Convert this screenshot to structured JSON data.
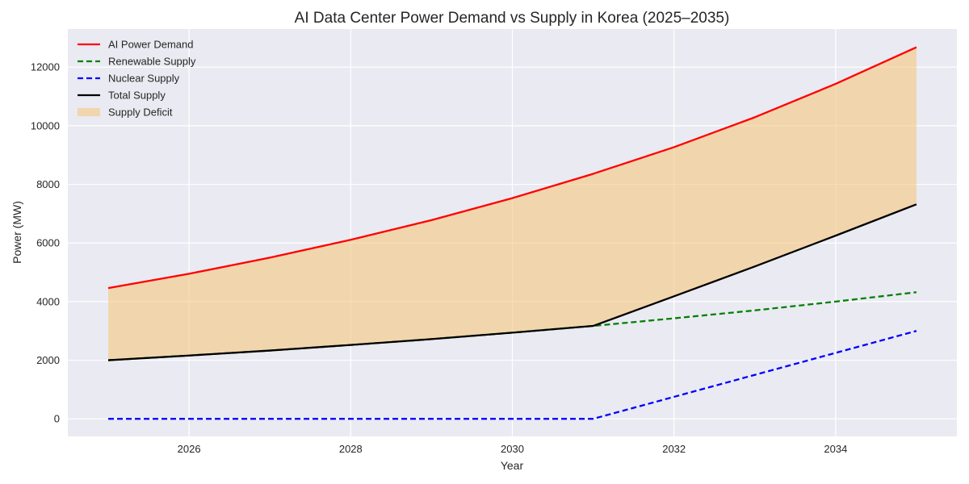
{
  "chart_data": {
    "type": "line",
    "title": "AI Data Center Power Demand vs Supply in Korea (2025–2035)",
    "xlabel": "Year",
    "ylabel": "Power (MW)",
    "xlim": [
      2024.5,
      2035.5
    ],
    "ylim": [
      -600,
      13300
    ],
    "x_ticks": [
      2026,
      2028,
      2030,
      2032,
      2034
    ],
    "y_ticks": [
      0,
      2000,
      4000,
      6000,
      8000,
      10000,
      12000
    ],
    "grid": true,
    "legend_position": "top-left",
    "x": [
      2025,
      2026,
      2027,
      2028,
      2029,
      2030,
      2031,
      2032,
      2033,
      2034,
      2035
    ],
    "series": [
      {
        "name": "AI Power Demand",
        "color": "#ff0000",
        "dash": "solid",
        "values": [
          4460,
          4950,
          5500,
          6110,
          6780,
          7530,
          8360,
          9270,
          10290,
          11430,
          12680
        ]
      },
      {
        "name": "Renewable Supply",
        "color": "#008000",
        "dash": "dashed",
        "values": [
          2000,
          2160,
          2330,
          2520,
          2720,
          2940,
          3170,
          3430,
          3700,
          4000,
          4320
        ]
      },
      {
        "name": "Nuclear Supply",
        "color": "#0000ff",
        "dash": "dashed",
        "values": [
          0,
          0,
          0,
          0,
          0,
          0,
          0,
          750,
          1500,
          2250,
          3000
        ]
      },
      {
        "name": "Total Supply",
        "color": "#000000",
        "dash": "solid",
        "values": [
          2000,
          2160,
          2330,
          2520,
          2720,
          2940,
          3170,
          4180,
          5200,
          6250,
          7320
        ]
      }
    ],
    "fill": {
      "name": "Supply Deficit",
      "between": [
        "AI Power Demand",
        "Total Supply"
      ],
      "color": "#f5c77e",
      "opacity": 0.6
    }
  }
}
